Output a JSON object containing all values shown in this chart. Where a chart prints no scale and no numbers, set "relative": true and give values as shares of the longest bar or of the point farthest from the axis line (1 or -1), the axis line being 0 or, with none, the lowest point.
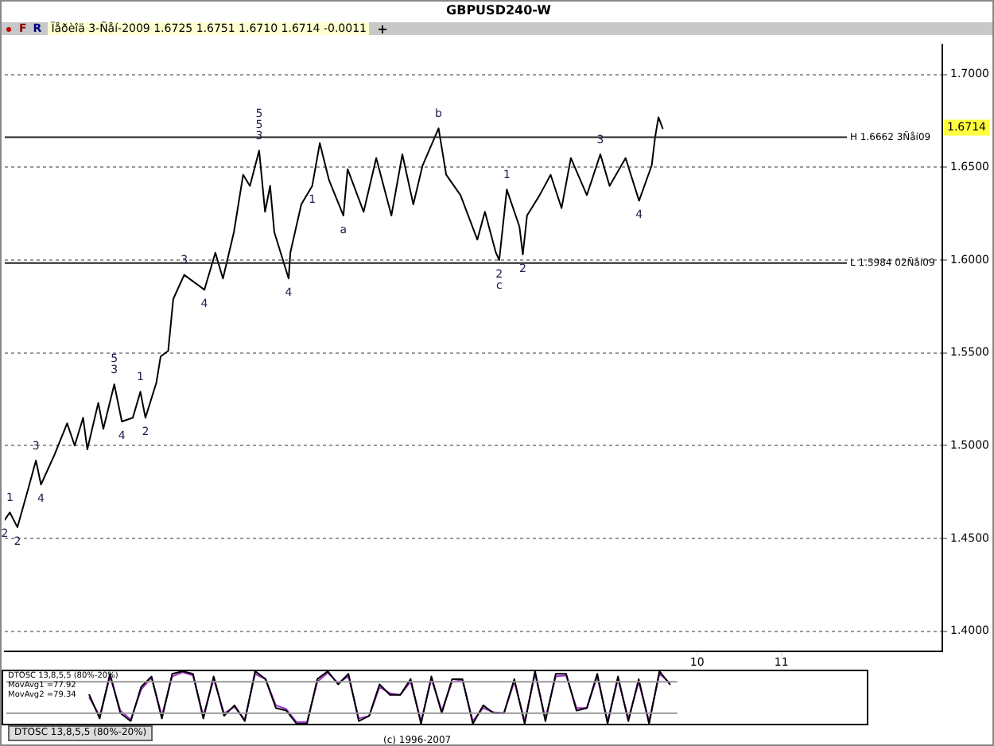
{
  "chart_data": [
    {
      "type": "line",
      "title": "GBPUSD240-W",
      "subtitle": "Ïåðèîä 3-Ñåí-2009   1.6725   1.6751   1.6710   1.6714   -0.0011",
      "x": [
        1.78,
        1.84,
        1.93,
        2.06,
        2.15,
        2.21,
        2.37,
        2.52,
        2.61,
        2.71,
        2.76,
        2.89,
        2.95,
        3.08,
        3.17,
        3.3,
        3.39,
        3.45,
        3.58,
        3.63,
        3.72,
        3.78,
        3.91,
        4.15,
        4.28,
        4.37,
        4.5,
        4.61,
        4.69,
        4.8,
        4.87,
        4.93,
        4.98,
        5.15,
        5.17,
        5.3,
        5.43,
        5.52,
        5.63,
        5.8,
        5.85,
        6.04,
        6.19,
        6.37,
        6.5,
        6.63,
        6.74,
        6.93,
        7.02,
        7.19,
        7.39,
        7.48,
        7.61,
        7.65,
        7.74,
        7.89,
        7.93,
        7.98,
        8.13,
        8.26,
        8.39,
        8.5,
        8.69,
        8.85,
        8.96,
        9.15,
        9.31,
        9.46,
        9.5,
        9.54,
        9.59
      ],
      "series": [
        {
          "color": "#000000",
          "values": [
            1.46,
            1.464,
            1.456,
            1.477,
            1.492,
            1.479,
            1.495,
            1.512,
            1.5,
            1.515,
            1.498,
            1.523,
            1.509,
            1.533,
            1.513,
            1.515,
            1.529,
            1.515,
            1.534,
            1.548,
            1.551,
            1.579,
            1.592,
            1.584,
            1.604,
            1.59,
            1.615,
            1.646,
            1.64,
            1.659,
            1.626,
            1.64,
            1.615,
            1.59,
            1.604,
            1.63,
            1.64,
            1.663,
            1.643,
            1.624,
            1.649,
            1.626,
            1.655,
            1.624,
            1.657,
            1.63,
            1.651,
            1.671,
            1.646,
            1.635,
            1.611,
            1.626,
            1.604,
            1.6,
            1.638,
            1.618,
            1.603,
            1.624,
            1.635,
            1.646,
            1.628,
            1.655,
            1.635,
            1.657,
            1.64,
            1.655,
            1.632,
            1.651,
            1.666,
            1.677,
            1.671
          ]
        }
      ],
      "xlim": [
        1.78,
        12.91
      ],
      "xticks": [
        10,
        11
      ],
      "ylim": [
        1.389,
        1.716
      ],
      "yticks": [
        {
          "value": 1.4,
          "label": "1.4000"
        },
        {
          "value": 1.45,
          "label": "1.4500"
        },
        {
          "value": 1.5,
          "label": "1.5000"
        },
        {
          "value": 1.55,
          "label": "1.5500"
        },
        {
          "value": 1.6,
          "label": "1.6000"
        },
        {
          "value": 1.65,
          "label": "1.6500"
        },
        {
          "value": 1.7,
          "label": "1.7000"
        }
      ],
      "grid": "y",
      "ref_lines": [
        {
          "axis": "y",
          "value": 1.6662,
          "label": "H 1.6662 3Ñåí09"
        },
        {
          "axis": "y",
          "value": 1.5984,
          "label": "L 1.5984 02Ñåí09"
        }
      ],
      "annotations": [
        "F",
        "R",
        {
          "text": "2",
          "x": 1.78,
          "y": 1.46
        },
        {
          "text": "2",
          "x": 1.93,
          "y": 1.456
        },
        {
          "text": "1",
          "x": 1.84,
          "y": 1.464
        },
        {
          "text": "3",
          "x": 2.15,
          "y": 1.492
        },
        {
          "text": "4",
          "x": 2.21,
          "y": 1.479
        },
        {
          "text": "3",
          "x": 3.08,
          "y": 1.533
        },
        {
          "text": "5",
          "x": 3.08,
          "y": 1.533
        },
        {
          "text": "4",
          "x": 3.17,
          "y": 1.513
        },
        {
          "text": "1",
          "x": 3.39,
          "y": 1.529
        },
        {
          "text": "2",
          "x": 3.45,
          "y": 1.515
        },
        {
          "text": "3",
          "x": 3.91,
          "y": 1.592
        },
        {
          "text": "4",
          "x": 4.15,
          "y": 1.584
        },
        {
          "text": "3",
          "x": 4.8,
          "y": 1.659
        },
        {
          "text": "5",
          "x": 4.8,
          "y": 1.659
        },
        {
          "text": "5",
          "x": 4.8,
          "y": 1.659
        },
        {
          "text": "4",
          "x": 5.15,
          "y": 1.59
        },
        {
          "text": "1",
          "x": 5.43,
          "y": 1.64
        },
        {
          "text": "a",
          "x": 5.8,
          "y": 1.624
        },
        {
          "text": "b",
          "x": 6.93,
          "y": 1.671
        },
        {
          "text": "1",
          "x": 7.74,
          "y": 1.638
        },
        {
          "text": "2",
          "x": 7.65,
          "y": 1.6
        },
        {
          "text": "c",
          "x": 7.65,
          "y": 1.6
        },
        {
          "text": "2",
          "x": 7.93,
          "y": 1.603
        },
        {
          "text": "3",
          "x": 8.85,
          "y": 1.657
        },
        {
          "text": "4",
          "x": 9.31,
          "y": 1.632
        },
        {
          "text": "1.6714",
          "y": 1.6714
        }
      ]
    },
    {
      "type": "line",
      "relative": true,
      "categories": [
        null,
        null,
        null,
        null,
        null,
        null,
        null,
        null,
        null,
        null,
        null,
        null,
        null,
        null,
        null,
        null,
        null,
        null,
        null,
        null,
        null,
        null,
        null,
        null,
        null,
        null,
        null,
        null,
        null,
        null,
        null,
        null,
        null,
        null,
        null,
        null,
        null,
        null,
        null,
        null,
        null,
        null,
        null,
        null,
        null,
        null,
        null,
        null,
        null,
        null,
        null,
        null,
        null,
        null,
        null,
        null,
        null,
        null,
        null,
        null,
        null,
        null,
        null,
        null,
        null,
        null,
        null,
        null,
        null,
        null,
        null,
        null,
        null,
        null,
        null,
        null,
        null,
        null,
        null,
        null,
        null,
        null,
        null,
        null
      ],
      "series": [
        {
          "color": "#000000",
          "values": [
            null,
            null,
            null,
            null,
            null,
            null,
            null,
            null,
            0.55,
            0.1,
            0.95,
            0.2,
            0.05,
            0.7,
            0.9,
            0.1,
            0.95,
            1.0,
            0.95,
            0.1,
            0.9,
            0.15,
            0.35,
            0.05,
            1.0,
            0.85,
            0.3,
            0.25,
            0.0,
            0.0,
            0.85,
            1.0,
            0.75,
            0.95,
            0.05,
            0.15,
            0.75,
            0.55,
            0.55,
            0.85,
            0.0,
            0.9,
            0.2,
            0.85,
            0.85,
            0.0,
            0.35,
            0.2,
            0.2,
            0.85,
            0.0,
            1.0,
            0.05,
            0.95,
            0.95,
            0.25,
            0.3,
            0.95,
            0.0,
            0.9,
            0.05,
            0.85,
            0.0,
            1.0,
            0.75,
            null,
            null,
            null,
            null,
            null,
            null,
            null,
            null,
            null,
            null,
            null,
            null,
            null,
            null,
            null,
            null,
            null,
            null,
            null
          ]
        },
        {
          "color": "#a030c8",
          "values": [
            null,
            null,
            null,
            null,
            null,
            null,
            null,
            null,
            0.5,
            0.15,
            0.9,
            0.25,
            0.08,
            0.65,
            0.88,
            0.15,
            0.9,
            0.98,
            0.92,
            0.15,
            0.85,
            0.2,
            0.32,
            0.08,
            0.95,
            0.85,
            0.35,
            0.28,
            0.03,
            0.03,
            0.8,
            0.97,
            0.78,
            0.9,
            0.1,
            0.15,
            0.7,
            0.58,
            0.55,
            0.8,
            0.05,
            0.85,
            0.25,
            0.8,
            0.83,
            0.05,
            0.3,
            0.22,
            0.2,
            0.8,
            0.05,
            0.95,
            0.1,
            0.9,
            0.92,
            0.3,
            0.3,
            0.9,
            0.05,
            0.85,
            0.1,
            0.8,
            0.05,
            0.95,
            0.78,
            null,
            null,
            null,
            null,
            null,
            null,
            null,
            null,
            null,
            null,
            null,
            null,
            null,
            null,
            null,
            null,
            null,
            null,
            null
          ]
        }
      ],
      "tick_labels": false,
      "ref_lines": [
        {
          "axis": "y",
          "value": 0.8,
          "color": "#999999"
        },
        {
          "axis": "y",
          "value": 0.2,
          "color": "#999999"
        }
      ],
      "annotations": [
        "DTOSC 13,8,5,5 (80%-20%)",
        "MovAvg1 =77.92",
        "MovAvg2 =79.34",
        "DTOSC 13,8,5,5 (80%-20%)",
        "(c) 1996-2007"
      ]
    }
  ]
}
